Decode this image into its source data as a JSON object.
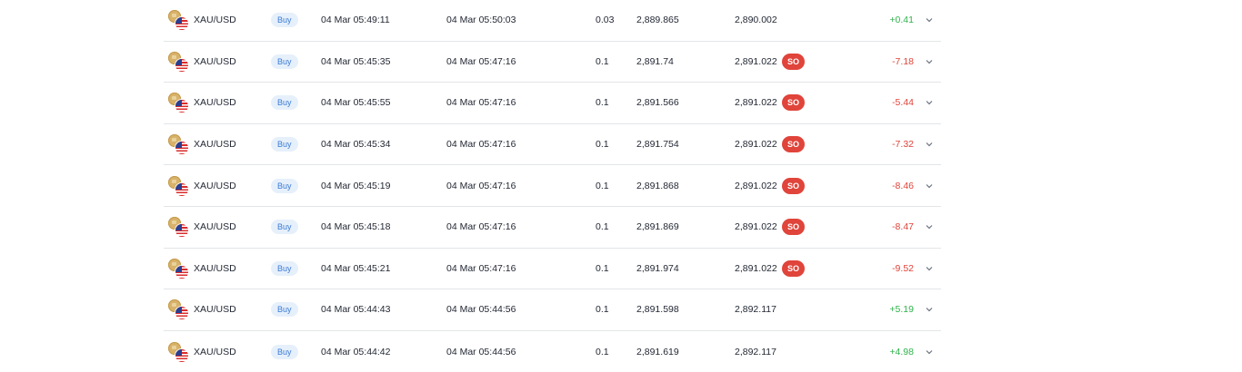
{
  "colors": {
    "positive": "#2fb24c",
    "negative": "#e0443a",
    "side_badge_bg": "#e6f0fb",
    "side_badge_text": "#3a7bd5",
    "so_badge_bg": "#e0443a"
  },
  "icons": {
    "row_symbol": [
      "gold-coin-icon",
      "us-flag-icon"
    ],
    "row_action": "chevron-down-icon"
  },
  "trades": [
    {
      "symbol": "XAU/USD",
      "side": "Buy",
      "open_time": "04 Mar 05:49:11",
      "close_time": "04 Mar 05:50:03",
      "volume": "0.03",
      "open_price": "2,889.865",
      "close_price": "2,890.002",
      "so": "",
      "profit": "+0.41",
      "profit_sign": "pos"
    },
    {
      "symbol": "XAU/USD",
      "side": "Buy",
      "open_time": "04 Mar 05:45:35",
      "close_time": "04 Mar 05:47:16",
      "volume": "0.1",
      "open_price": "2,891.74",
      "close_price": "2,891.022",
      "so": "SO",
      "profit": "-7.18",
      "profit_sign": "neg"
    },
    {
      "symbol": "XAU/USD",
      "side": "Buy",
      "open_time": "04 Mar 05:45:55",
      "close_time": "04 Mar 05:47:16",
      "volume": "0.1",
      "open_price": "2,891.566",
      "close_price": "2,891.022",
      "so": "SO",
      "profit": "-5.44",
      "profit_sign": "neg"
    },
    {
      "symbol": "XAU/USD",
      "side": "Buy",
      "open_time": "04 Mar 05:45:34",
      "close_time": "04 Mar 05:47:16",
      "volume": "0.1",
      "open_price": "2,891.754",
      "close_price": "2,891.022",
      "so": "SO",
      "profit": "-7.32",
      "profit_sign": "neg"
    },
    {
      "symbol": "XAU/USD",
      "side": "Buy",
      "open_time": "04 Mar 05:45:19",
      "close_time": "04 Mar 05:47:16",
      "volume": "0.1",
      "open_price": "2,891.868",
      "close_price": "2,891.022",
      "so": "SO",
      "profit": "-8.46",
      "profit_sign": "neg"
    },
    {
      "symbol": "XAU/USD",
      "side": "Buy",
      "open_time": "04 Mar 05:45:18",
      "close_time": "04 Mar 05:47:16",
      "volume": "0.1",
      "open_price": "2,891.869",
      "close_price": "2,891.022",
      "so": "SO",
      "profit": "-8.47",
      "profit_sign": "neg"
    },
    {
      "symbol": "XAU/USD",
      "side": "Buy",
      "open_time": "04 Mar 05:45:21",
      "close_time": "04 Mar 05:47:16",
      "volume": "0.1",
      "open_price": "2,891.974",
      "close_price": "2,891.022",
      "so": "SO",
      "profit": "-9.52",
      "profit_sign": "neg"
    },
    {
      "symbol": "XAU/USD",
      "side": "Buy",
      "open_time": "04 Mar 05:44:43",
      "close_time": "04 Mar 05:44:56",
      "volume": "0.1",
      "open_price": "2,891.598",
      "close_price": "2,892.117",
      "so": "",
      "profit": "+5.19",
      "profit_sign": "pos"
    },
    {
      "symbol": "XAU/USD",
      "side": "Buy",
      "open_time": "04 Mar 05:44:42",
      "close_time": "04 Mar 05:44:56",
      "volume": "0.1",
      "open_price": "2,891.619",
      "close_price": "2,892.117",
      "so": "",
      "profit": "+4.98",
      "profit_sign": "pos"
    }
  ]
}
